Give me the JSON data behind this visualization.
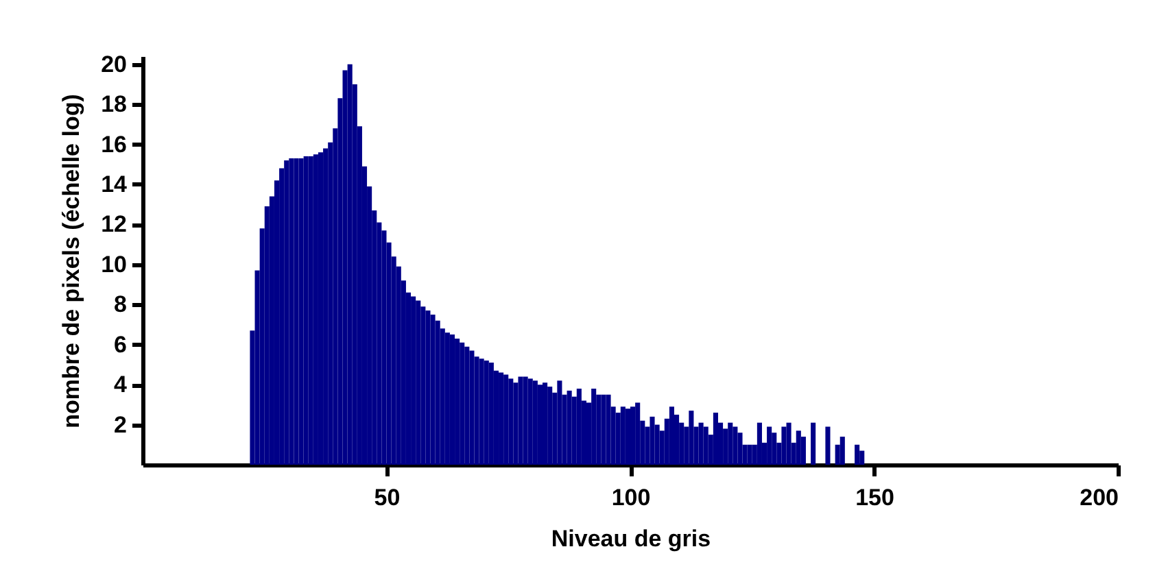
{
  "chart_data": {
    "type": "histogram",
    "xlabel": "Niveau de gris",
    "ylabel": "nombre de pixels (échelle log)",
    "color": "#000088",
    "bins": [
      22,
      23,
      24,
      25,
      26,
      27,
      28,
      29,
      30,
      31,
      32,
      33,
      34,
      35,
      36,
      37,
      38,
      39,
      40,
      41,
      42,
      43,
      44,
      45,
      46,
      47,
      48,
      49,
      50,
      51,
      52,
      53,
      54,
      55,
      56,
      57,
      58,
      59,
      60,
      61,
      62,
      63,
      64,
      65,
      66,
      67,
      68,
      69,
      70,
      71,
      72,
      73,
      74,
      75,
      76,
      77,
      78,
      79,
      80,
      81,
      82,
      83,
      84,
      85,
      86,
      87,
      88,
      89,
      90,
      91,
      92,
      93,
      94,
      95,
      96,
      97,
      98,
      99,
      100,
      101,
      102,
      103,
      104,
      105,
      106,
      107,
      108,
      109,
      110,
      111,
      112,
      113,
      114,
      115,
      116,
      117,
      118,
      119,
      120,
      121,
      122,
      123,
      124,
      125,
      126,
      127,
      128,
      129,
      130,
      131,
      132,
      133,
      134,
      135,
      136,
      137,
      138,
      139,
      140,
      141,
      142,
      143,
      144,
      145,
      146,
      147,
      148
    ],
    "values": [
      6.7,
      9.7,
      11.8,
      12.9,
      13.4,
      14.2,
      14.8,
      15.2,
      15.3,
      15.3,
      15.3,
      15.4,
      15.4,
      15.5,
      15.6,
      15.8,
      16.1,
      16.8,
      18.3,
      19.7,
      20.0,
      19.0,
      16.9,
      14.9,
      13.9,
      12.7,
      12.1,
      11.7,
      11.1,
      10.4,
      9.9,
      9.2,
      8.6,
      8.4,
      8.2,
      7.9,
      7.7,
      7.5,
      7.2,
      6.8,
      6.6,
      6.5,
      6.3,
      6.1,
      5.9,
      5.7,
      5.4,
      5.3,
      5.2,
      5.1,
      4.7,
      4.6,
      4.5,
      4.3,
      4.1,
      4.4,
      4.4,
      4.3,
      4.2,
      4.0,
      4.1,
      3.9,
      3.6,
      4.2,
      3.5,
      3.7,
      3.4,
      3.8,
      3.2,
      3.1,
      3.8,
      3.5,
      3.5,
      3.5,
      2.9,
      2.6,
      2.9,
      2.8,
      2.9,
      3.1,
      2.2,
      1.9,
      2.4,
      2.0,
      1.7,
      2.3,
      2.9,
      2.5,
      2.1,
      1.9,
      2.7,
      1.9,
      2.1,
      1.9,
      1.5,
      2.6,
      2.1,
      1.8,
      2.1,
      1.9,
      1.6,
      1.0,
      1.0,
      1.0,
      2.1,
      1.1,
      1.9,
      1.6,
      1.1,
      1.9,
      2.1,
      1.1,
      1.7,
      1.4,
      0,
      2.1,
      0,
      0,
      1.9,
      0,
      1.0,
      1.4,
      0,
      0,
      1.0,
      0.7
    ],
    "xlim": [
      0,
      200
    ],
    "xticks": [
      50,
      100,
      150,
      200
    ],
    "ylim": [
      0,
      20.4
    ],
    "yticks": [
      2,
      4,
      6,
      8,
      10,
      12,
      14,
      16,
      18,
      20
    ]
  }
}
